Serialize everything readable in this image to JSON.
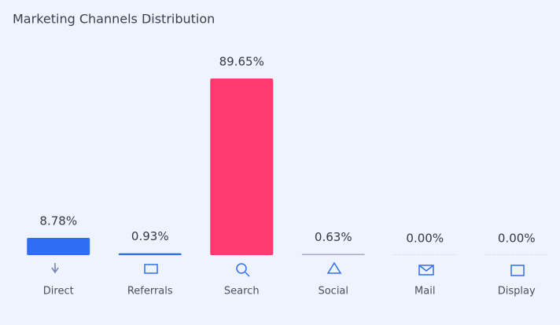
{
  "chart_data": {
    "type": "bar",
    "title": "Marketing Channels Distribution",
    "categories": [
      "Direct",
      "Referrals",
      "Search",
      "Social",
      "Mail",
      "Display"
    ],
    "values": [
      8.78,
      0.93,
      89.65,
      0.63,
      0.0,
      0.0
    ],
    "value_labels": [
      "8.78%",
      "0.93%",
      "89.65%",
      "0.63%",
      "0.00%",
      "0.00%"
    ],
    "colors": [
      "#2f6df4",
      "#2f6df4",
      "#ff3b6f",
      "#a7b1c8",
      "#b9c0cf",
      "#b9c0cf"
    ]
  }
}
